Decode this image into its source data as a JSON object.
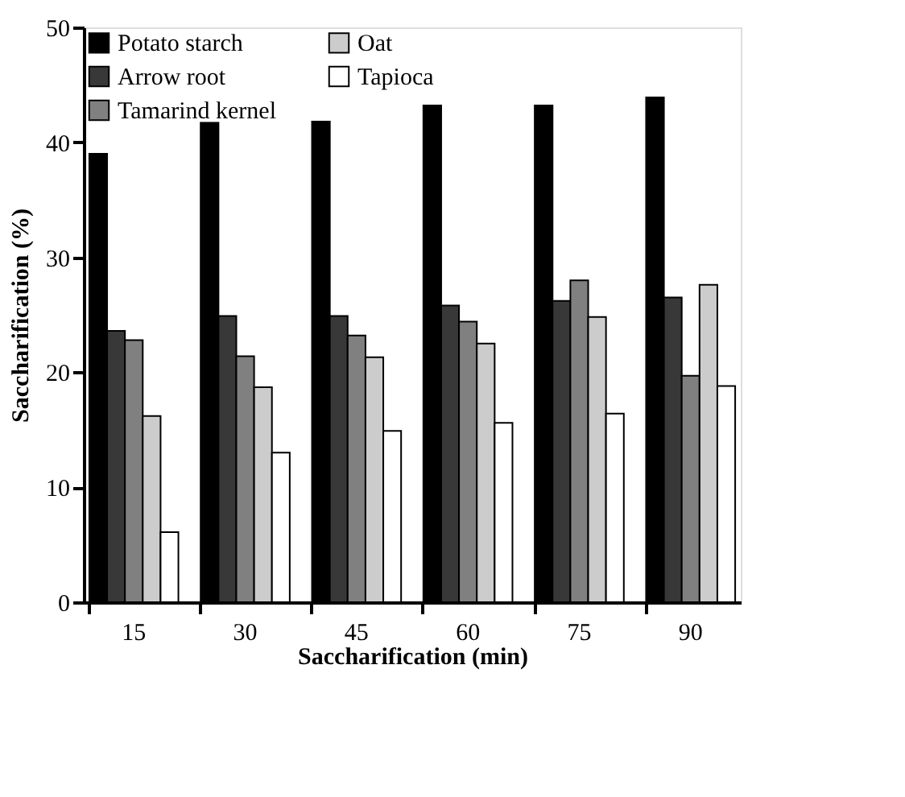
{
  "chart_data": {
    "type": "bar",
    "xlabel": "Saccharification (min)",
    "ylabel": "Saccharification (%)",
    "categories": [
      "15",
      "30",
      "45",
      "60",
      "75",
      "90"
    ],
    "series": [
      {
        "name": "Potato starch",
        "color": "#000000",
        "values": [
          39.0,
          41.7,
          41.8,
          43.2,
          43.2,
          43.9
        ]
      },
      {
        "name": "Arrow root",
        "color": "#383838",
        "values": [
          23.6,
          24.9,
          24.9,
          25.8,
          26.2,
          26.5
        ]
      },
      {
        "name": "Tamarind kernel",
        "color": "#808080",
        "values": [
          22.8,
          21.4,
          23.2,
          24.4,
          28.0,
          19.7
        ]
      },
      {
        "name": "Oat",
        "color": "#cccccc",
        "values": [
          16.2,
          18.7,
          21.3,
          22.5,
          24.8,
          27.6
        ]
      },
      {
        "name": "Tapioca",
        "color": "#ffffff",
        "values": [
          6.1,
          13.0,
          14.9,
          15.6,
          16.4,
          18.8
        ]
      }
    ],
    "ylim": [
      0,
      50
    ],
    "yticks": [
      0,
      10,
      20,
      30,
      40,
      50
    ],
    "grid": false,
    "legend": "top left"
  }
}
